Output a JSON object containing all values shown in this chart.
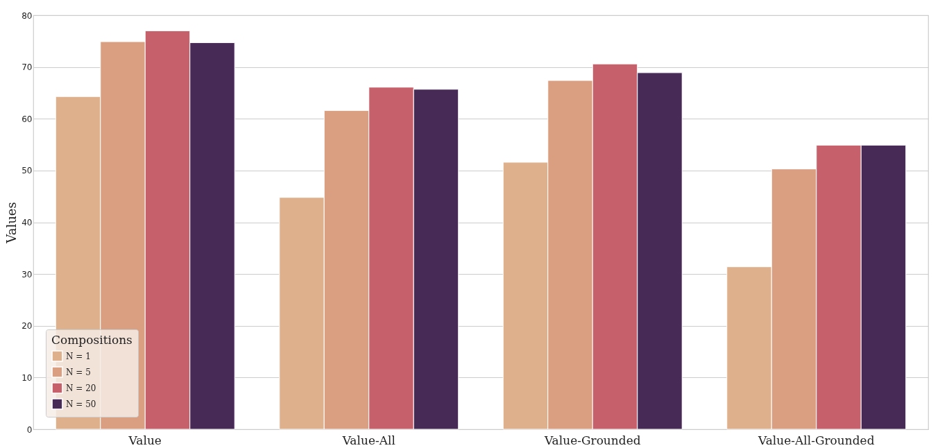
{
  "chart_data": {
    "type": "bar",
    "ylabel": "Values",
    "legend_title": "Compositions",
    "categories": [
      "Value",
      "Value-All",
      "Value-Grounded",
      "Value-All-Grounded"
    ],
    "series": [
      {
        "name": "N = 1",
        "color": "#dfb08c",
        "values": [
          64.3,
          44.8,
          51.6,
          31.4
        ]
      },
      {
        "name": "N = 5",
        "color": "#da9f81",
        "values": [
          74.9,
          61.6,
          67.4,
          50.3
        ]
      },
      {
        "name": "N = 20",
        "color": "#c6606a",
        "values": [
          77.0,
          66.1,
          70.6,
          54.9
        ]
      },
      {
        "name": "N = 50",
        "color": "#482a57",
        "values": [
          74.7,
          65.7,
          68.9,
          54.9
        ]
      }
    ],
    "ylim": [
      0,
      80
    ],
    "yticks": [
      0,
      10,
      20,
      30,
      40,
      50,
      60,
      70,
      80
    ],
    "grid": "y",
    "legend": "bottom left"
  }
}
